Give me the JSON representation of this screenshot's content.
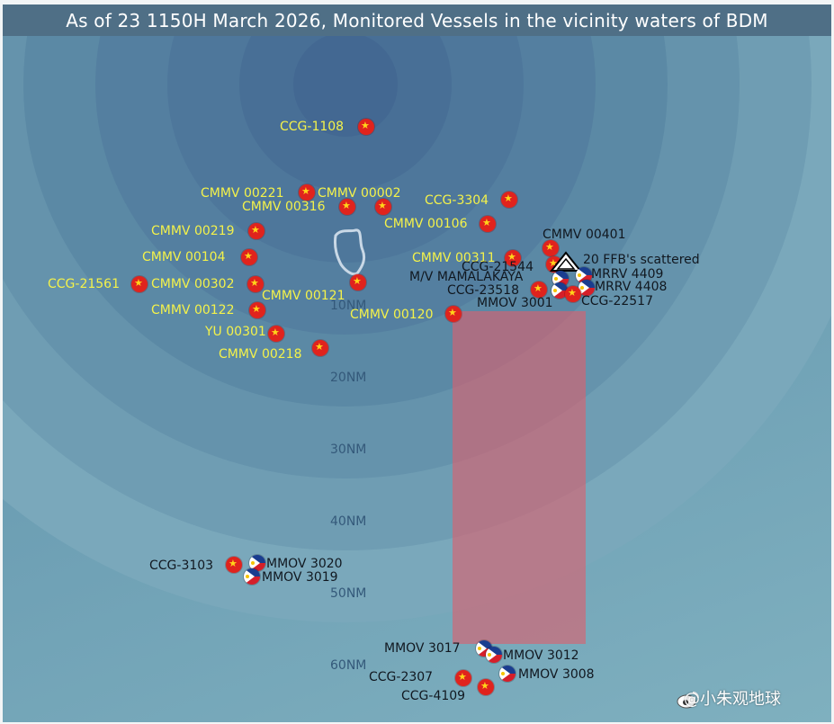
{
  "title": "As of 23 1150H March 2026, Monitored Vessels in the vicinity waters of BDM",
  "range_rings": [
    "10NM",
    "20NM",
    "30NM",
    "40NM",
    "50NM",
    "60NM"
  ],
  "vessels_cn": [
    {
      "id": "ccg-1108",
      "label": "CCG-1108"
    },
    {
      "id": "cmmv-00221",
      "label": "CMMV 00221"
    },
    {
      "id": "cmmv-00002",
      "label": "CMMV 00002"
    },
    {
      "id": "cmmv-00316",
      "label": "CMMV 00316"
    },
    {
      "id": "ccg-3304",
      "label": "CCG-3304"
    },
    {
      "id": "cmmv-00106",
      "label": "CMMV 00106"
    },
    {
      "id": "cmmv-00219",
      "label": "CMMV 00219"
    },
    {
      "id": "cmmv-00104",
      "label": "CMMV 00104"
    },
    {
      "id": "cmmv-00311",
      "label": "CMMV 00311"
    },
    {
      "id": "ccg-21561",
      "label": "CCG-21561"
    },
    {
      "id": "cmmv-00302",
      "label": "CMMV 00302"
    },
    {
      "id": "cmmv-00121",
      "label": "CMMV 00121"
    },
    {
      "id": "cmmv-00122",
      "label": "CMMV 00122"
    },
    {
      "id": "cmmv-00120",
      "label": "CMMV 00120"
    },
    {
      "id": "yu-00301",
      "label": "YU 00301"
    },
    {
      "id": "cmmv-00218",
      "label": "CMMV 00218"
    }
  ],
  "vessels_dark": [
    {
      "id": "cmmv-00401",
      "label": "CMMV 00401"
    },
    {
      "id": "ccg-21544",
      "label": "CCG-21544"
    },
    {
      "id": "ffb",
      "label": "20 FFB's scattered"
    },
    {
      "id": "mv-mamalakaya",
      "label": "M/V MAMALAKAYA"
    },
    {
      "id": "mrrv-4409",
      "label": "MRRV 4409"
    },
    {
      "id": "ccg-23518",
      "label": "CCG-23518"
    },
    {
      "id": "mrrv-4408",
      "label": "MRRV 4408"
    },
    {
      "id": "mmov-3001",
      "label": "MMOV 3001"
    },
    {
      "id": "ccg-22517",
      "label": "CCG-22517"
    },
    {
      "id": "ccg-3103",
      "label": "CCG-3103"
    },
    {
      "id": "mmov-3020",
      "label": "MMOV 3020"
    },
    {
      "id": "mmov-3019",
      "label": "MMOV 3019"
    },
    {
      "id": "mmov-3017",
      "label": "MMOV 3017"
    },
    {
      "id": "mmov-3012",
      "label": "MMOV 3012"
    },
    {
      "id": "ccg-2307",
      "label": "CCG-2307"
    },
    {
      "id": "mmov-3008",
      "label": "MMOV 3008"
    },
    {
      "id": "ccg-4109",
      "label": "CCG-4109"
    }
  ],
  "watermark": "@小朱观地球",
  "colors": {
    "cn_label": "#f4f24a",
    "ph_label": "#111820",
    "zone": "#dc5f6e",
    "title_bg": "#4f6f86"
  }
}
